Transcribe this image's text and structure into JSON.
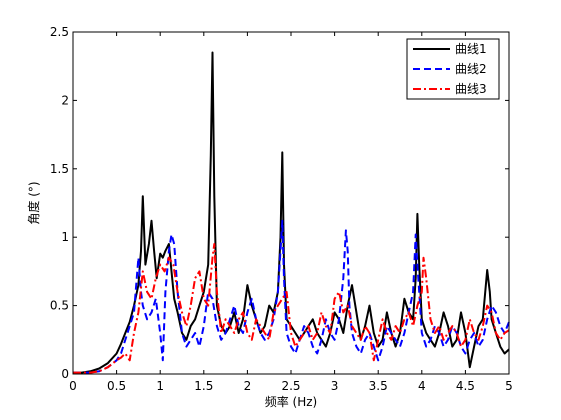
{
  "chart_data": {
    "type": "line",
    "xlabel": "频率 (Hz)",
    "ylabel": "角度 (°)",
    "xlim": [
      0,
      5
    ],
    "ylim": [
      0,
      2.5
    ],
    "xticks": [
      "0",
      "0.5",
      "1",
      "1.5",
      "2",
      "2.5",
      "3",
      "3.5",
      "4",
      "4.5",
      "5"
    ],
    "yticks": [
      "0",
      "0.5",
      "1",
      "1.5",
      "2",
      "2.5"
    ],
    "grid": false,
    "legend_position": "top-right",
    "series": [
      {
        "name": "曲线1",
        "color": "#000000",
        "style": "solid",
        "x": [
          0,
          0.1,
          0.2,
          0.3,
          0.4,
          0.5,
          0.55,
          0.6,
          0.65,
          0.7,
          0.75,
          0.78,
          0.8,
          0.83,
          0.87,
          0.9,
          0.93,
          0.96,
          1.0,
          1.03,
          1.06,
          1.1,
          1.13,
          1.16,
          1.2,
          1.25,
          1.3,
          1.35,
          1.4,
          1.45,
          1.5,
          1.55,
          1.58,
          1.6,
          1.62,
          1.65,
          1.7,
          1.75,
          1.8,
          1.85,
          1.9,
          1.95,
          2.0,
          2.05,
          2.1,
          2.15,
          2.2,
          2.25,
          2.3,
          2.35,
          2.38,
          2.4,
          2.42,
          2.45,
          2.5,
          2.55,
          2.6,
          2.65,
          2.7,
          2.75,
          2.8,
          2.85,
          2.9,
          2.95,
          3.0,
          3.05,
          3.1,
          3.15,
          3.2,
          3.25,
          3.3,
          3.35,
          3.4,
          3.45,
          3.5,
          3.55,
          3.6,
          3.65,
          3.7,
          3.75,
          3.8,
          3.85,
          3.9,
          3.93,
          3.95,
          3.97,
          4.0,
          4.05,
          4.1,
          4.15,
          4.2,
          4.25,
          4.3,
          4.35,
          4.4,
          4.45,
          4.5,
          4.55,
          4.6,
          4.65,
          4.7,
          4.75,
          4.78,
          4.8,
          4.85,
          4.9,
          4.95,
          5.0
        ],
        "y": [
          0.01,
          0.01,
          0.02,
          0.04,
          0.08,
          0.15,
          0.22,
          0.3,
          0.38,
          0.5,
          0.65,
          0.9,
          1.3,
          0.8,
          0.95,
          1.12,
          0.9,
          0.7,
          0.88,
          0.85,
          0.9,
          0.95,
          0.75,
          0.55,
          0.45,
          0.3,
          0.25,
          0.35,
          0.4,
          0.5,
          0.6,
          0.8,
          1.6,
          2.35,
          1.3,
          0.5,
          0.35,
          0.3,
          0.35,
          0.45,
          0.3,
          0.4,
          0.65,
          0.5,
          0.4,
          0.3,
          0.35,
          0.5,
          0.45,
          0.6,
          1.0,
          1.62,
          0.8,
          0.4,
          0.35,
          0.3,
          0.25,
          0.3,
          0.35,
          0.4,
          0.3,
          0.25,
          0.2,
          0.3,
          0.45,
          0.4,
          0.3,
          0.5,
          0.65,
          0.45,
          0.25,
          0.35,
          0.5,
          0.3,
          0.2,
          0.25,
          0.45,
          0.3,
          0.2,
          0.3,
          0.55,
          0.45,
          0.4,
          0.7,
          1.17,
          0.8,
          0.4,
          0.3,
          0.25,
          0.2,
          0.3,
          0.45,
          0.35,
          0.2,
          0.25,
          0.45,
          0.3,
          0.05,
          0.2,
          0.35,
          0.4,
          0.76,
          0.6,
          0.4,
          0.3,
          0.2,
          0.15,
          0.18
        ]
      },
      {
        "name": "曲线2",
        "color": "#0000ff",
        "style": "dashed",
        "x": [
          0,
          0.1,
          0.2,
          0.3,
          0.4,
          0.5,
          0.55,
          0.6,
          0.65,
          0.7,
          0.75,
          0.78,
          0.8,
          0.85,
          0.9,
          0.95,
          1.0,
          1.03,
          1.06,
          1.1,
          1.13,
          1.16,
          1.2,
          1.25,
          1.3,
          1.35,
          1.4,
          1.45,
          1.5,
          1.55,
          1.6,
          1.65,
          1.7,
          1.75,
          1.8,
          1.85,
          1.9,
          1.95,
          2.0,
          2.05,
          2.1,
          2.15,
          2.2,
          2.25,
          2.3,
          2.35,
          2.38,
          2.4,
          2.42,
          2.45,
          2.5,
          2.55,
          2.6,
          2.65,
          2.7,
          2.75,
          2.8,
          2.85,
          2.9,
          2.95,
          3.0,
          3.05,
          3.1,
          3.13,
          3.15,
          3.17,
          3.2,
          3.25,
          3.3,
          3.35,
          3.4,
          3.45,
          3.5,
          3.55,
          3.6,
          3.65,
          3.7,
          3.75,
          3.8,
          3.85,
          3.9,
          3.93,
          3.95,
          3.98,
          4.0,
          4.05,
          4.1,
          4.15,
          4.2,
          4.25,
          4.3,
          4.35,
          4.4,
          4.45,
          4.5,
          4.55,
          4.6,
          4.65,
          4.7,
          4.75,
          4.8,
          4.85,
          4.9,
          4.95,
          5.0
        ],
        "y": [
          0.01,
          0.01,
          0.01,
          0.02,
          0.05,
          0.1,
          0.15,
          0.25,
          0.35,
          0.45,
          0.85,
          0.6,
          0.5,
          0.4,
          0.45,
          0.55,
          0.3,
          0.1,
          0.6,
          0.9,
          1.02,
          0.95,
          0.6,
          0.3,
          0.2,
          0.25,
          0.3,
          0.2,
          0.35,
          0.6,
          0.55,
          0.35,
          0.25,
          0.3,
          0.4,
          0.5,
          0.35,
          0.3,
          0.45,
          0.55,
          0.4,
          0.3,
          0.25,
          0.3,
          0.4,
          0.6,
          0.9,
          1.12,
          0.7,
          0.3,
          0.2,
          0.15,
          0.25,
          0.35,
          0.3,
          0.2,
          0.15,
          0.25,
          0.4,
          0.3,
          0.25,
          0.4,
          0.7,
          1.05,
          0.9,
          0.5,
          0.3,
          0.2,
          0.15,
          0.25,
          0.3,
          0.2,
          0.1,
          0.2,
          0.35,
          0.3,
          0.25,
          0.2,
          0.3,
          0.45,
          0.6,
          1.02,
          0.8,
          0.5,
          0.3,
          0.2,
          0.25,
          0.35,
          0.3,
          0.2,
          0.25,
          0.35,
          0.3,
          0.2,
          0.15,
          0.25,
          0.3,
          0.2,
          0.25,
          0.4,
          0.5,
          0.45,
          0.35,
          0.3,
          0.38
        ]
      },
      {
        "name": "曲线3",
        "color": "#ff0000",
        "style": "dashdot",
        "x": [
          0,
          0.1,
          0.2,
          0.3,
          0.4,
          0.5,
          0.55,
          0.6,
          0.65,
          0.7,
          0.75,
          0.8,
          0.85,
          0.9,
          0.95,
          1.0,
          1.05,
          1.1,
          1.15,
          1.2,
          1.25,
          1.3,
          1.35,
          1.4,
          1.45,
          1.5,
          1.55,
          1.6,
          1.62,
          1.65,
          1.7,
          1.75,
          1.8,
          1.85,
          1.9,
          1.95,
          2.0,
          2.05,
          2.1,
          2.15,
          2.2,
          2.25,
          2.3,
          2.35,
          2.4,
          2.45,
          2.5,
          2.55,
          2.6,
          2.65,
          2.7,
          2.75,
          2.8,
          2.85,
          2.9,
          2.95,
          3.0,
          3.05,
          3.1,
          3.15,
          3.2,
          3.25,
          3.3,
          3.35,
          3.4,
          3.45,
          3.5,
          3.55,
          3.6,
          3.65,
          3.7,
          3.75,
          3.8,
          3.85,
          3.9,
          3.95,
          4.0,
          4.02,
          4.05,
          4.1,
          4.15,
          4.2,
          4.25,
          4.3,
          4.35,
          4.4,
          4.45,
          4.5,
          4.55,
          4.6,
          4.65,
          4.7,
          4.75,
          4.8,
          4.85,
          4.9,
          4.95,
          5.0
        ],
        "y": [
          0.01,
          0.01,
          0.01,
          0.02,
          0.05,
          0.1,
          0.12,
          0.15,
          0.1,
          0.3,
          0.45,
          0.75,
          0.6,
          0.55,
          0.7,
          0.8,
          0.75,
          0.85,
          0.8,
          0.6,
          0.45,
          0.35,
          0.5,
          0.7,
          0.75,
          0.55,
          0.5,
          0.85,
          0.95,
          0.6,
          0.3,
          0.4,
          0.35,
          0.3,
          0.4,
          0.45,
          0.3,
          0.25,
          0.4,
          0.35,
          0.3,
          0.25,
          0.45,
          0.5,
          0.55,
          0.6,
          0.3,
          0.2,
          0.25,
          0.3,
          0.35,
          0.25,
          0.3,
          0.45,
          0.35,
          0.3,
          0.55,
          0.6,
          0.45,
          0.5,
          0.35,
          0.3,
          0.25,
          0.35,
          0.3,
          0.1,
          0.25,
          0.4,
          0.3,
          0.25,
          0.35,
          0.3,
          0.4,
          0.45,
          0.35,
          0.5,
          0.6,
          0.85,
          0.7,
          0.4,
          0.3,
          0.35,
          0.25,
          0.3,
          0.35,
          0.3,
          0.2,
          0.25,
          0.4,
          0.3,
          0.25,
          0.35,
          0.5,
          0.45,
          0.3,
          0.25,
          0.3,
          0.32
        ]
      }
    ]
  }
}
